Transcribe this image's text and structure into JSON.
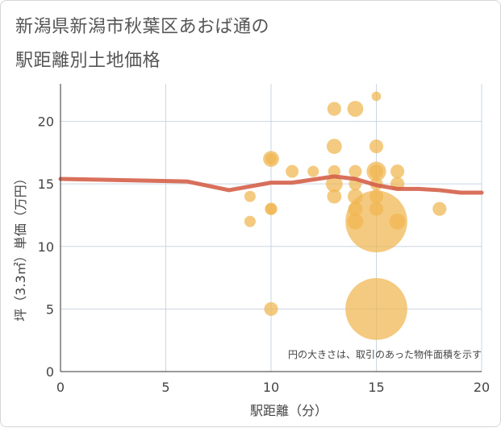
{
  "title_lines": [
    "新潟県新潟市秋葉区あおば通の",
    "駅距離別土地価格"
  ],
  "chart_data": {
    "type": "scatter",
    "title": "新潟県新潟市秋葉区あおば通の駅距離別土地価格",
    "xlabel": "駅距離（分）",
    "ylabel": "坪（3.3㎡）単価（万円）",
    "xlim": [
      0,
      20
    ],
    "ylim": [
      0,
      23
    ],
    "x_ticks": [
      "0",
      "5",
      "10",
      "15",
      "20"
    ],
    "y_ticks": [
      "0",
      "5",
      "10",
      "15",
      "20"
    ],
    "grid": true,
    "note": "円の大きさは、取引のあった物件面積を示す",
    "bubble_color": "#f0b650",
    "line_color": "#d4604a",
    "bubbles": [
      {
        "x": 9,
        "y": 14,
        "s": 1
      },
      {
        "x": 9,
        "y": 12,
        "s": 1
      },
      {
        "x": 10,
        "y": 17,
        "s": 2
      },
      {
        "x": 10,
        "y": 17,
        "s": 1
      },
      {
        "x": 10,
        "y": 13,
        "s": 1.2
      },
      {
        "x": 10,
        "y": 13,
        "s": 1
      },
      {
        "x": 10,
        "y": 5,
        "s": 1.5
      },
      {
        "x": 11,
        "y": 16,
        "s": 1.3
      },
      {
        "x": 12,
        "y": 16,
        "s": 1
      },
      {
        "x": 13,
        "y": 21,
        "s": 1.5
      },
      {
        "x": 13,
        "y": 18,
        "s": 1.8
      },
      {
        "x": 13,
        "y": 16,
        "s": 1.2
      },
      {
        "x": 13,
        "y": 15,
        "s": 2.2
      },
      {
        "x": 13,
        "y": 14,
        "s": 1.6
      },
      {
        "x": 14,
        "y": 21,
        "s": 2
      },
      {
        "x": 14,
        "y": 16,
        "s": 1.3
      },
      {
        "x": 14,
        "y": 15,
        "s": 1.3
      },
      {
        "x": 14,
        "y": 14,
        "s": 1.8
      },
      {
        "x": 14,
        "y": 13,
        "s": 1.6
      },
      {
        "x": 14,
        "y": 12,
        "s": 2
      },
      {
        "x": 15,
        "y": 22,
        "s": 0.7
      },
      {
        "x": 15,
        "y": 18,
        "s": 1.5
      },
      {
        "x": 15,
        "y": 16,
        "s": 3
      },
      {
        "x": 15,
        "y": 16,
        "s": 1.5
      },
      {
        "x": 15,
        "y": 15,
        "s": 1.3
      },
      {
        "x": 15,
        "y": 14,
        "s": 1.5
      },
      {
        "x": 15,
        "y": 13,
        "s": 1.5
      },
      {
        "x": 15,
        "y": 12,
        "s": 30
      },
      {
        "x": 15,
        "y": 5,
        "s": 30
      },
      {
        "x": 16,
        "y": 16,
        "s": 1.5
      },
      {
        "x": 16,
        "y": 15,
        "s": 1.5
      },
      {
        "x": 16,
        "y": 12,
        "s": 2
      },
      {
        "x": 18,
        "y": 13,
        "s": 1.5
      }
    ],
    "trend": {
      "x": [
        0,
        6,
        8,
        10,
        11,
        13,
        14,
        15,
        16,
        17,
        18,
        19,
        20
      ],
      "y": [
        15.4,
        15.2,
        14.5,
        15.1,
        15.1,
        15.6,
        15.4,
        14.9,
        14.6,
        14.6,
        14.5,
        14.3,
        14.3
      ]
    }
  }
}
